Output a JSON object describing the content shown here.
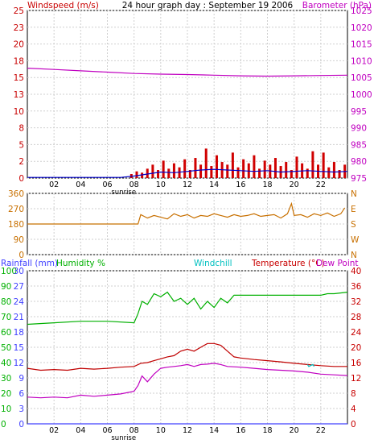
{
  "chart_data": [
    {
      "type": "bar",
      "panel": "wind-barometer",
      "title": "24 hour graph day : September 19 2006",
      "left_axis_label": "Windspeed (m/s)",
      "right_axis_label": "Barometer (hPa)",
      "x_ticks": [
        "02",
        "04",
        "06",
        "08",
        "10",
        "12",
        "14",
        "16",
        "18",
        "20",
        "22"
      ],
      "sunrise_label": "sunrise",
      "sunrise_hour": 7.1,
      "left_ticks": [
        "0",
        "2",
        "5",
        "8",
        "10",
        "13",
        "15",
        "18",
        "20",
        "23",
        "25"
      ],
      "left_range": [
        0,
        25
      ],
      "right_ticks": [
        "975",
        "980",
        "985",
        "990",
        "995",
        "1000",
        "1005",
        "1010",
        "1015",
        "1020",
        "1025"
      ],
      "right_range": [
        975,
        1025
      ],
      "series": [
        {
          "name": "Windspeed",
          "color": "#d00000",
          "x": [
            7.8,
            8.2,
            8.6,
            9.0,
            9.4,
            9.8,
            10.2,
            10.6,
            11.0,
            11.4,
            11.8,
            12.2,
            12.6,
            13.0,
            13.4,
            13.8,
            14.2,
            14.6,
            15.0,
            15.4,
            15.8,
            16.2,
            16.6,
            17.0,
            17.4,
            17.8,
            18.2,
            18.6,
            19.0,
            19.4,
            19.8,
            20.2,
            20.6,
            21.0,
            21.4,
            21.8,
            22.2,
            22.6,
            23.0,
            23.4,
            23.8
          ],
          "y": [
            0.6,
            1.0,
            0.8,
            1.4,
            2.0,
            1.2,
            2.6,
            1.4,
            2.2,
            1.6,
            2.8,
            1.2,
            3.0,
            2.0,
            4.4,
            1.8,
            3.4,
            2.4,
            2.0,
            3.8,
            1.6,
            2.8,
            2.2,
            3.4,
            1.4,
            2.6,
            2.0,
            3.0,
            1.8,
            2.4,
            1.2,
            3.2,
            2.2,
            1.4,
            4.0,
            2.0,
            3.8,
            1.6,
            2.4,
            1.2,
            2.0
          ]
        },
        {
          "name": "Wind average",
          "color": "#0000c8",
          "x": [
            0,
            7.0,
            8.0,
            9.0,
            10.0,
            11.0,
            12.0,
            13.0,
            14.0,
            15.0,
            16.0,
            17.0,
            18.0,
            19.0,
            20.0,
            21.0,
            22.0,
            23.0,
            24.0
          ],
          "y": [
            0.1,
            0.1,
            0.3,
            0.6,
            0.9,
            0.8,
            1.0,
            1.2,
            1.3,
            1.2,
            1.1,
            1.0,
            1.1,
            0.9,
            1.0,
            1.1,
            1.0,
            0.9,
            1.0
          ]
        },
        {
          "name": "Barometer",
          "color": "#c000c0",
          "x": [
            0,
            2,
            4,
            6,
            8,
            10,
            12,
            14,
            16,
            18,
            20,
            22,
            24
          ],
          "y": [
            1007.8,
            1007.4,
            1007.0,
            1006.6,
            1006.2,
            1006.0,
            1005.9,
            1005.7,
            1005.5,
            1005.4,
            1005.5,
            1005.6,
            1005.7
          ]
        }
      ]
    },
    {
      "type": "line",
      "panel": "wind-direction",
      "left_ticks": [
        "0",
        "90",
        "180",
        "270",
        "360"
      ],
      "left_range": [
        0,
        360
      ],
      "right_ticks": [
        "N",
        "W",
        "S",
        "E",
        "N"
      ],
      "x_ticks": [
        "02",
        "04",
        "06",
        "08",
        "10",
        "12",
        "14",
        "16",
        "18",
        "20",
        "22"
      ],
      "series": [
        {
          "name": "Wind direction",
          "color": "#c87000",
          "x": [
            0,
            8.3,
            8.5,
            9.0,
            9.5,
            10.0,
            10.5,
            11.0,
            11.5,
            12.0,
            12.5,
            13.0,
            13.5,
            14.0,
            14.5,
            15.0,
            15.5,
            16.0,
            16.5,
            17.0,
            17.5,
            18.0,
            18.5,
            19.0,
            19.5,
            19.8,
            20.0,
            20.5,
            21.0,
            21.5,
            22.0,
            22.5,
            23.0,
            23.5,
            23.8
          ],
          "y": [
            180,
            180,
            235,
            215,
            230,
            220,
            210,
            240,
            225,
            235,
            215,
            230,
            225,
            240,
            230,
            220,
            235,
            225,
            230,
            240,
            225,
            230,
            235,
            215,
            240,
            300,
            230,
            235,
            220,
            240,
            230,
            245,
            225,
            240,
            275
          ]
        }
      ]
    },
    {
      "type": "line",
      "panel": "humidity-temperature",
      "labels": {
        "rainfall": "Rainfall (mm)",
        "humidity": "Humidity %",
        "windchill": "Windchill",
        "temperature": "Temperature (°C)",
        "dewpoint": "Dew Point"
      },
      "humidity_ticks": [
        "0",
        "10",
        "20",
        "30",
        "40",
        "50",
        "60",
        "70",
        "80",
        "90",
        "100"
      ],
      "humidity_range": [
        0,
        100
      ],
      "rain_ticks": [
        "0",
        "3",
        "6",
        "9",
        "12",
        "15",
        "18",
        "21",
        "24",
        "27",
        "30"
      ],
      "rain_range": [
        0,
        30
      ],
      "temp_ticks": [
        "0",
        "4",
        "8",
        "12",
        "16",
        "20",
        "24",
        "28",
        "32",
        "36",
        "40"
      ],
      "temp_range": [
        0,
        40
      ],
      "x_ticks": [
        "02",
        "04",
        "06",
        "08",
        "10",
        "12",
        "14",
        "16",
        "18",
        "20",
        "22"
      ],
      "sunrise_label": "sunrise",
      "series": [
        {
          "name": "Humidity",
          "color": "#00b000",
          "axis": "humidity",
          "x": [
            0,
            2,
            4,
            6,
            8,
            8.3,
            8.6,
            9.0,
            9.5,
            10.0,
            10.5,
            11.0,
            11.5,
            12.0,
            12.5,
            13.0,
            13.5,
            14.0,
            14.5,
            15.0,
            15.5,
            16.0,
            18,
            20,
            22,
            22.5,
            23,
            24
          ],
          "y": [
            65,
            66,
            67,
            67,
            66,
            72,
            80,
            78,
            85,
            83,
            86,
            80,
            82,
            78,
            82,
            75,
            80,
            76,
            82,
            79,
            84,
            84,
            84,
            84,
            84,
            85,
            85,
            86
          ]
        },
        {
          "name": "Temperature",
          "color": "#c00000",
          "axis": "temp",
          "x": [
            0,
            1,
            2,
            3,
            4,
            5,
            6,
            7,
            8,
            8.5,
            9,
            9.5,
            10,
            10.5,
            11,
            11.5,
            12,
            12.5,
            13,
            13.5,
            14,
            14.5,
            15,
            15.5,
            16,
            17,
            18,
            19,
            20,
            21,
            22,
            23,
            24
          ],
          "y": [
            14.5,
            14.0,
            14.2,
            14.0,
            14.5,
            14.3,
            14.5,
            14.8,
            15.0,
            15.8,
            16.0,
            16.5,
            17.0,
            17.5,
            17.8,
            19.0,
            19.5,
            19.0,
            20.0,
            21.0,
            21.0,
            20.5,
            19.0,
            17.5,
            17.2,
            16.8,
            16.5,
            16.2,
            15.8,
            15.5,
            15.2,
            15.0,
            15.0
          ]
        },
        {
          "name": "Dew Point",
          "color": "#c000c0",
          "axis": "temp",
          "x": [
            0,
            1,
            2,
            3,
            4,
            5,
            6,
            7,
            8,
            8.3,
            8.6,
            9,
            9.5,
            10,
            10.5,
            11,
            11.5,
            12,
            12.5,
            13,
            13.5,
            14,
            14.5,
            15,
            16,
            17,
            18,
            19,
            20,
            21,
            22,
            23,
            24
          ],
          "y": [
            7.0,
            6.8,
            7.0,
            6.8,
            7.5,
            7.2,
            7.5,
            7.8,
            8.5,
            10,
            12.5,
            11,
            13,
            14.5,
            14.8,
            15.0,
            15.2,
            15.5,
            15.0,
            15.5,
            15.6,
            15.8,
            15.5,
            15.0,
            14.8,
            14.5,
            14.2,
            14.0,
            13.8,
            13.5,
            13.0,
            12.8,
            12.6
          ]
        },
        {
          "name": "Windchill",
          "color": "#00c0c0",
          "axis": "temp",
          "x": [
            21.0,
            21.1,
            21.4,
            21.5
          ],
          "y": [
            15.5,
            15.0,
            15.5,
            15.0
          ]
        },
        {
          "name": "Rainfall",
          "color": "#4040ff",
          "axis": "rain",
          "x": [
            0,
            24
          ],
          "y": [
            0,
            0
          ]
        }
      ]
    }
  ]
}
